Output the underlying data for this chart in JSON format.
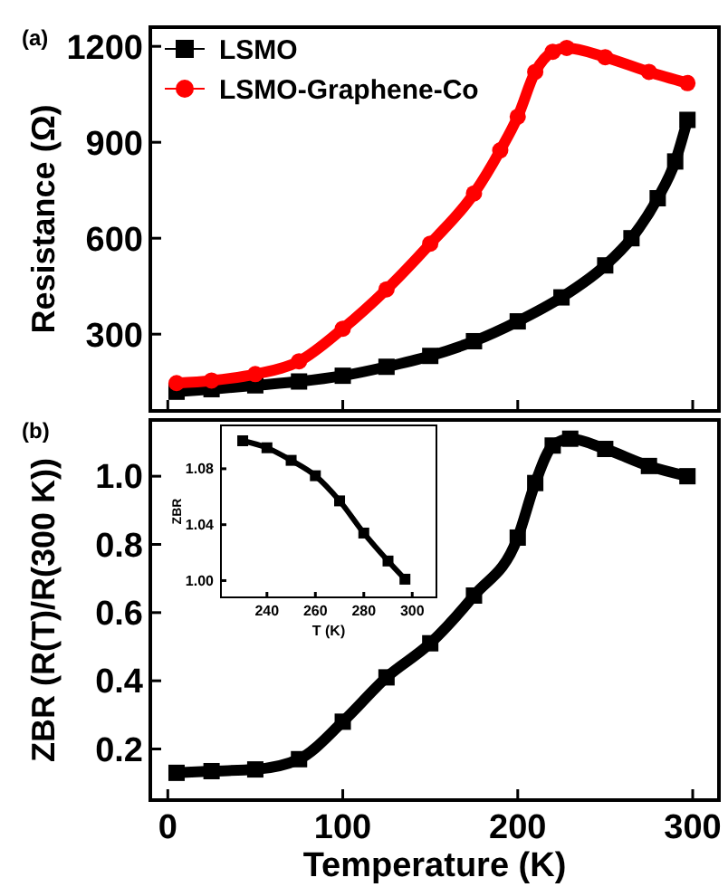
{
  "chart_data": [
    {
      "type": "line",
      "annotations": [
        "(a)"
      ],
      "ylabel": "Resistance (Ω)",
      "xlim": [
        -10,
        315
      ],
      "ylim": [
        60,
        1260
      ],
      "xticks": [
        0,
        100,
        200,
        300
      ],
      "yticks": [
        300,
        600,
        900,
        1200
      ],
      "tick_labels": "y",
      "legend": "top left",
      "line_style": "solid",
      "series": [
        {
          "name": "LSMO",
          "color": "#000000",
          "marker": "square",
          "x": [
            5,
            25,
            50,
            75,
            100,
            125,
            150,
            175,
            200,
            225,
            250,
            265,
            280,
            290,
            297
          ],
          "values": [
            120,
            128,
            140,
            152,
            170,
            198,
            232,
            278,
            340,
            415,
            515,
            600,
            725,
            840,
            970
          ]
        },
        {
          "name": "LSMO-Graphene-Co",
          "color": "#ff0000",
          "marker": "circle",
          "x": [
            5,
            25,
            50,
            75,
            100,
            125,
            150,
            175,
            190,
            200,
            210,
            220,
            228,
            250,
            275,
            297
          ],
          "values": [
            147,
            155,
            175,
            215,
            317,
            440,
            583,
            740,
            875,
            980,
            1120,
            1183,
            1195,
            1166,
            1120,
            1085
          ]
        }
      ]
    },
    {
      "type": "line",
      "annotations": [
        "(b)"
      ],
      "xlabel": "Temperature (K)",
      "ylabel": "ZBR (R(T)/R(300 K))",
      "xlim": [
        -10,
        315
      ],
      "ylim": [
        0.05,
        1.165
      ],
      "xticks": [
        0,
        100,
        200,
        300
      ],
      "yticks": [
        0.2,
        0.4,
        0.6,
        0.8,
        {
          "value": 1,
          "label": "1.0"
        }
      ],
      "line_style": "solid",
      "marker": "square",
      "series": [
        {
          "color": "#000000",
          "x": [
            5,
            25,
            50,
            75,
            100,
            125,
            150,
            175,
            200,
            210,
            220,
            230,
            250,
            275,
            297
          ],
          "values": [
            0.13,
            0.135,
            0.14,
            0.17,
            0.28,
            0.41,
            0.51,
            0.65,
            0.82,
            0.98,
            1.09,
            1.11,
            1.08,
            1.03,
            1.0
          ]
        }
      ]
    },
    {
      "type": "line",
      "xlabel": "T (K)",
      "ylabel": "ZBR",
      "xlim": [
        221,
        310
      ],
      "ylim": [
        0.988,
        1.111
      ],
      "xticks": [
        240,
        260,
        280,
        300
      ],
      "yticks": [
        {
          "value": 1,
          "label": "1.00"
        },
        {
          "value": 1.04,
          "label": "1.04"
        },
        {
          "value": 1.08,
          "label": "1.08"
        }
      ],
      "line_style": "solid",
      "marker": "square",
      "series": [
        {
          "color": "#000000",
          "x": [
            230,
            240,
            250,
            260,
            270,
            280,
            290,
            297
          ],
          "values": [
            1.1,
            1.095,
            1.086,
            1.075,
            1.057,
            1.034,
            1.014,
            1.001
          ]
        }
      ]
    }
  ]
}
